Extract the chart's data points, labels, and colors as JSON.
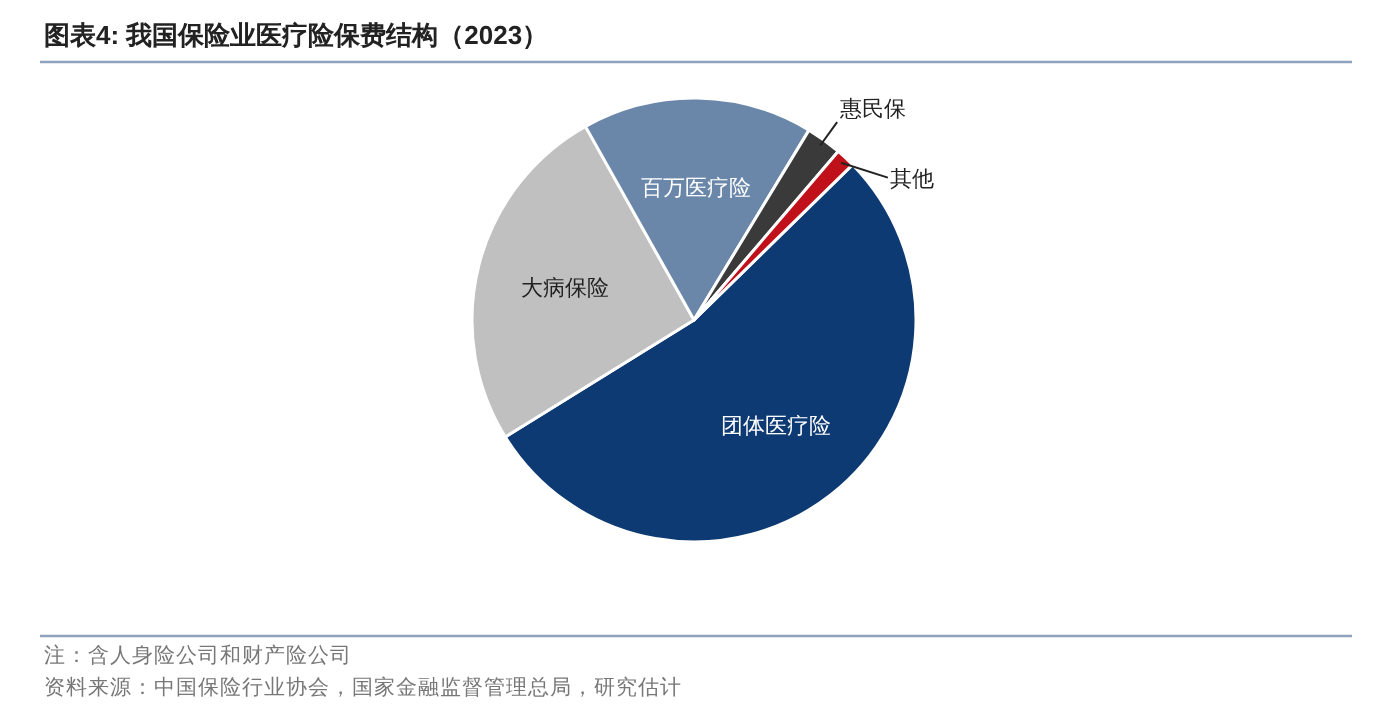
{
  "chart_data": {
    "type": "pie",
    "title": "图表4:  我国保险业医疗险保费结构（2023）",
    "categories": [
      "团体医疗险",
      "大病保险",
      "百万医疗险",
      "惠民保",
      "其他"
    ],
    "values": [
      53.5,
      25.7,
      16.8,
      2.6,
      1.4
    ],
    "colors": [
      "#0e3a73",
      "#c0c0c0",
      "#6a87aa",
      "#3a3a3a",
      "#c0101a"
    ],
    "annotations": [
      "注：含人身险公司和财产险公司",
      "资料来源：中国保险行业协会，国家金融监督管理总局，研究估计"
    ]
  }
}
